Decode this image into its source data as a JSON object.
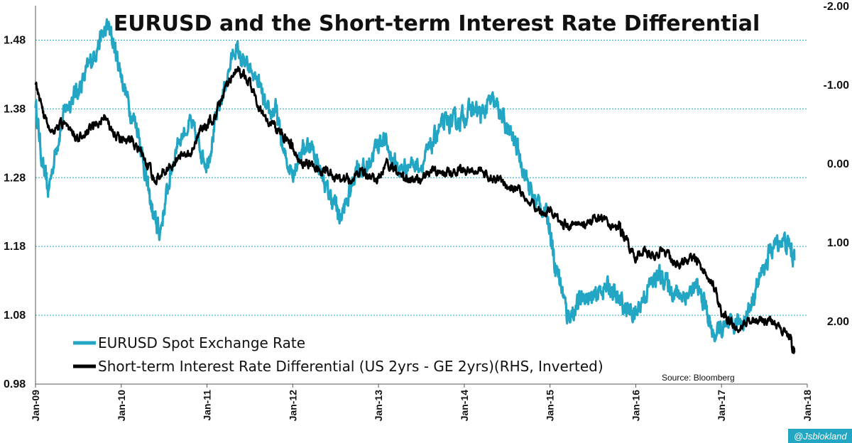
{
  "chart_data": {
    "type": "line",
    "title": "EURUSD and the Short-term Interest Rate Differential",
    "x_ticks": [
      "Jan-09",
      "Jan-10",
      "Jan-11",
      "Jan-12",
      "Jan-13",
      "Jan-14",
      "Jan-15",
      "Jan-16",
      "Jan-17",
      "Jan-18"
    ],
    "y_left": {
      "ticks": [
        "0.98",
        "1.08",
        "1.18",
        "1.28",
        "1.38",
        "1.48"
      ],
      "ylim": [
        0.98,
        1.53
      ]
    },
    "y_right": {
      "ticks": [
        "-2.00",
        "-1.00",
        "0.00",
        "1.00",
        "2.00"
      ],
      "ylim": [
        -2.0,
        2.8
      ],
      "inverted": true
    },
    "series": [
      {
        "name": "EURUSD Spot Exchange Rate",
        "axis": "left",
        "color": "#22A6C4",
        "x": [
          2009.0,
          2009.08,
          2009.15,
          2009.25,
          2009.35,
          2009.45,
          2009.55,
          2009.65,
          2009.75,
          2009.85,
          2009.92,
          2010.0,
          2010.1,
          2010.2,
          2010.3,
          2010.38,
          2010.45,
          2010.55,
          2010.65,
          2010.8,
          2010.9,
          2011.0,
          2011.1,
          2011.2,
          2011.33,
          2011.45,
          2011.6,
          2011.7,
          2011.8,
          2011.9,
          2012.0,
          2012.1,
          2012.2,
          2012.3,
          2012.4,
          2012.5,
          2012.55,
          2012.65,
          2012.75,
          2012.85,
          2012.95,
          2013.05,
          2013.15,
          2013.25,
          2013.35,
          2013.5,
          2013.6,
          2013.7,
          2013.8,
          2013.9,
          2014.0,
          2014.1,
          2014.2,
          2014.3,
          2014.4,
          2014.5,
          2014.6,
          2014.7,
          2014.8,
          2014.9,
          2015.0,
          2015.05,
          2015.12,
          2015.2,
          2015.3,
          2015.4,
          2015.5,
          2015.6,
          2015.7,
          2015.8,
          2015.9,
          2016.0,
          2016.1,
          2016.2,
          2016.3,
          2016.4,
          2016.5,
          2016.6,
          2016.7,
          2016.8,
          2016.9,
          2017.0,
          2017.1,
          2017.2,
          2017.3,
          2017.4,
          2017.5,
          2017.6,
          2017.7,
          2017.8,
          2017.85
        ],
        "values": [
          1.39,
          1.3,
          1.26,
          1.33,
          1.38,
          1.4,
          1.42,
          1.45,
          1.48,
          1.5,
          1.47,
          1.43,
          1.38,
          1.35,
          1.27,
          1.22,
          1.2,
          1.27,
          1.33,
          1.36,
          1.33,
          1.3,
          1.36,
          1.41,
          1.47,
          1.44,
          1.42,
          1.37,
          1.38,
          1.31,
          1.29,
          1.32,
          1.33,
          1.3,
          1.26,
          1.24,
          1.22,
          1.25,
          1.3,
          1.29,
          1.32,
          1.34,
          1.31,
          1.29,
          1.3,
          1.3,
          1.32,
          1.35,
          1.36,
          1.36,
          1.37,
          1.38,
          1.37,
          1.39,
          1.38,
          1.35,
          1.33,
          1.29,
          1.25,
          1.24,
          1.21,
          1.16,
          1.13,
          1.08,
          1.09,
          1.11,
          1.1,
          1.12,
          1.12,
          1.1,
          1.09,
          1.08,
          1.11,
          1.13,
          1.14,
          1.12,
          1.11,
          1.11,
          1.12,
          1.1,
          1.05,
          1.06,
          1.06,
          1.07,
          1.08,
          1.12,
          1.15,
          1.18,
          1.19,
          1.18,
          1.16
        ]
      },
      {
        "name": "Short-term Interest Rate Differential (US 2yrs - GE 2yrs)(RHS, Inverted)",
        "axis": "right",
        "color": "#000000",
        "x": [
          2009.0,
          2009.1,
          2009.2,
          2009.3,
          2009.4,
          2009.5,
          2009.6,
          2009.7,
          2009.8,
          2009.9,
          2010.0,
          2010.1,
          2010.2,
          2010.3,
          2010.4,
          2010.5,
          2010.6,
          2010.7,
          2010.8,
          2010.9,
          2011.0,
          2011.1,
          2011.2,
          2011.33,
          2011.45,
          2011.55,
          2011.65,
          2011.75,
          2011.85,
          2011.95,
          2012.0,
          2012.1,
          2012.2,
          2012.3,
          2012.4,
          2012.5,
          2012.6,
          2012.7,
          2012.8,
          2012.9,
          2013.0,
          2013.1,
          2013.2,
          2013.3,
          2013.4,
          2013.5,
          2013.6,
          2013.7,
          2013.8,
          2013.9,
          2014.0,
          2014.1,
          2014.2,
          2014.3,
          2014.4,
          2014.5,
          2014.6,
          2014.7,
          2014.8,
          2014.9,
          2015.0,
          2015.1,
          2015.2,
          2015.3,
          2015.4,
          2015.5,
          2015.6,
          2015.7,
          2015.8,
          2015.85,
          2015.9,
          2016.0,
          2016.1,
          2016.2,
          2016.3,
          2016.4,
          2016.5,
          2016.6,
          2016.7,
          2016.8,
          2016.9,
          2017.0,
          2017.1,
          2017.2,
          2017.3,
          2017.4,
          2017.5,
          2017.6,
          2017.7,
          2017.8,
          2017.85
        ],
        "values": [
          -1.0,
          -0.6,
          -0.4,
          -0.5,
          -0.4,
          -0.3,
          -0.4,
          -0.5,
          -0.6,
          -0.4,
          -0.3,
          -0.3,
          -0.2,
          0.0,
          0.2,
          0.1,
          0.0,
          -0.1,
          -0.1,
          -0.4,
          -0.5,
          -0.6,
          -0.9,
          -1.2,
          -1.1,
          -0.9,
          -0.6,
          -0.5,
          -0.4,
          -0.3,
          -0.2,
          0.0,
          0.0,
          0.1,
          0.1,
          0.2,
          0.2,
          0.2,
          0.1,
          0.2,
          0.2,
          0.0,
          0.1,
          0.2,
          0.2,
          0.2,
          0.1,
          0.1,
          0.1,
          0.1,
          0.1,
          0.1,
          0.1,
          0.2,
          0.2,
          0.3,
          0.3,
          0.4,
          0.5,
          0.6,
          0.6,
          0.7,
          0.8,
          0.8,
          0.8,
          0.7,
          0.7,
          0.8,
          0.8,
          0.9,
          1.0,
          1.2,
          1.1,
          1.2,
          1.1,
          1.2,
          1.3,
          1.2,
          1.2,
          1.4,
          1.5,
          1.9,
          2.0,
          2.1,
          2.0,
          2.0,
          2.0,
          2.0,
          2.1,
          2.2,
          2.4
        ]
      }
    ]
  },
  "legend": {
    "eur": "EURUSD Spot Exchange Rate",
    "rate": "Short-term Interest Rate Differential (US 2yrs - GE 2yrs)(RHS, Inverted)"
  },
  "source": "Source: Bloomberg",
  "credit": "@Jsblokland",
  "colors": {
    "eur": "#22A6C4",
    "rate": "#000000",
    "grid": "#22A6C4"
  }
}
